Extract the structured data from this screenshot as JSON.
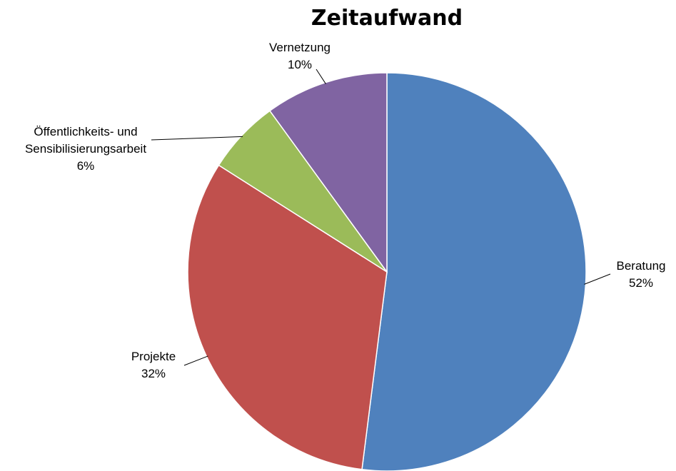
{
  "chart_data": {
    "type": "pie",
    "title": "Zeitaufwand",
    "categories": [
      "Beratung",
      "Projekte",
      "Öffentlichkeits- und Sensibilisierungsarbeit",
      "Vernetzung"
    ],
    "values": [
      52,
      32,
      6,
      10
    ],
    "value_labels": [
      "52%",
      "32%",
      "6%",
      "10%"
    ],
    "colors": [
      "#4f81bd",
      "#c0504d",
      "#9bbb59",
      "#8064a2"
    ]
  }
}
